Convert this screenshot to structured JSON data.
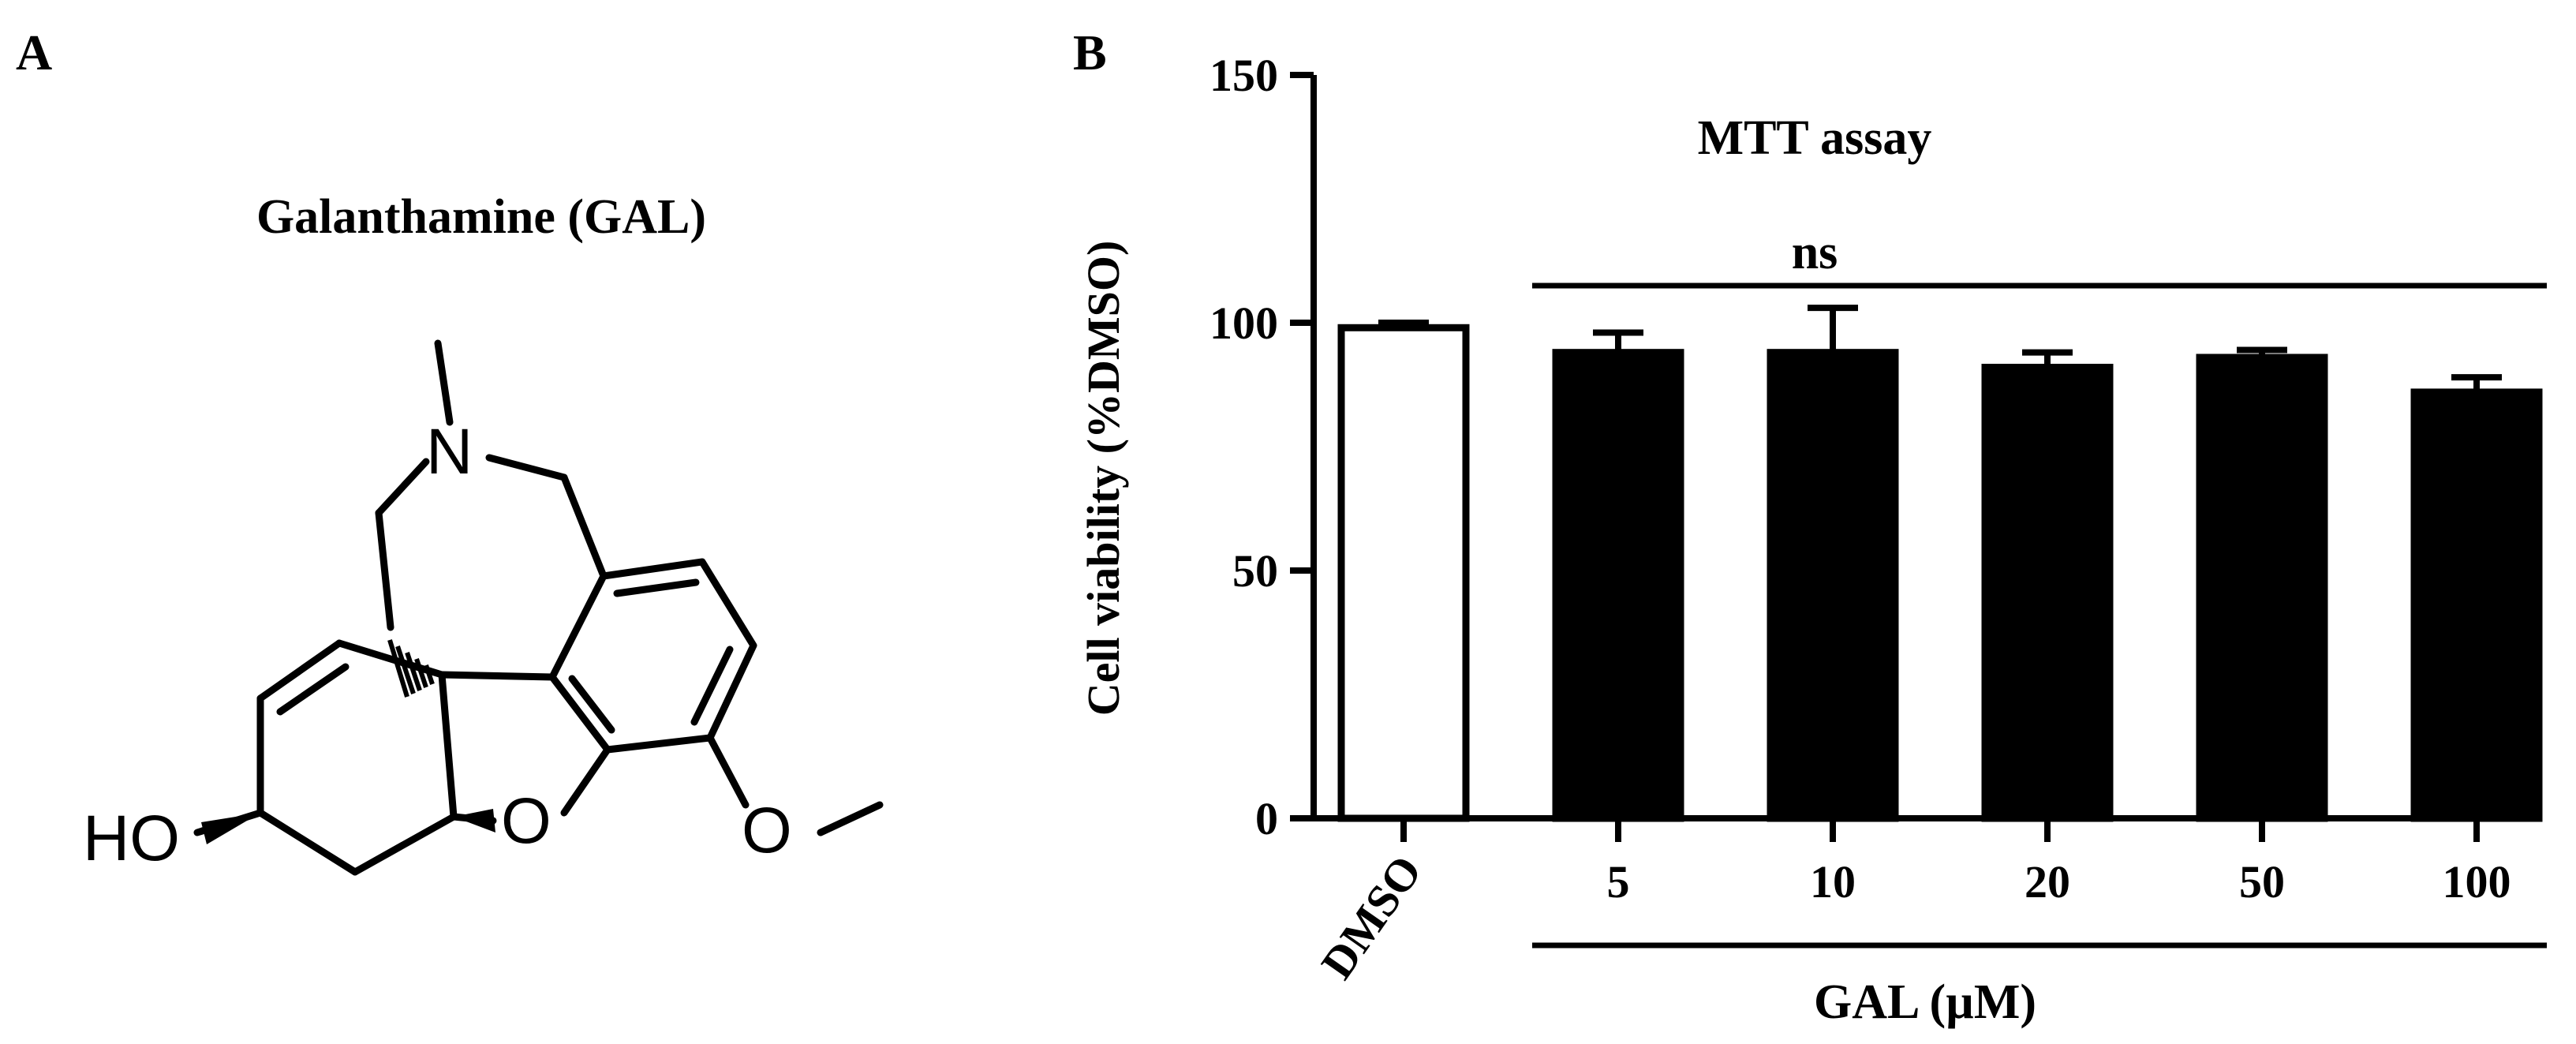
{
  "panels": {
    "a": "A",
    "b": "B"
  },
  "molecule": {
    "title": "Galanthamine (GAL)",
    "atoms": {
      "n": "N",
      "o_ring": "O",
      "o_methoxy": "O",
      "ho": "HO"
    }
  },
  "chart_data": {
    "type": "bar",
    "title": "MTT assay",
    "ylabel": "Cell viability (%DMSO)",
    "xlabel": "GAL (µM)",
    "ylim": [
      0,
      150
    ],
    "yticks": [
      "0",
      "50",
      "100",
      "150"
    ],
    "categories": [
      "DMSO",
      "5",
      "10",
      "20",
      "50",
      "100"
    ],
    "values": [
      99,
      94,
      94,
      91,
      93,
      86
    ],
    "errors": [
      1,
      4,
      9,
      3,
      1.5,
      3
    ],
    "bar_colors": [
      "#ffffff",
      "#000000",
      "#000000",
      "#000000",
      "#000000",
      "#000000"
    ],
    "significance": {
      "label": "ns"
    }
  }
}
